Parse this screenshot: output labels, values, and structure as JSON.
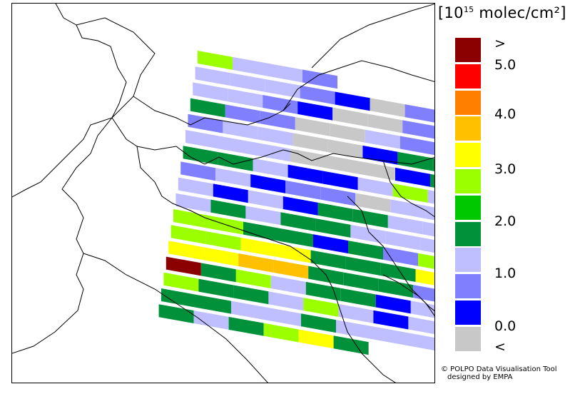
{
  "legend": {
    "title_prefix": "[10",
    "title_exp": "15",
    "title_unit": " molec/cm²]",
    "colors": [
      "#8b0000",
      "#ff0000",
      "#ff7f00",
      "#ffc000",
      "#ffff00",
      "#9cff00",
      "#00c800",
      "#00913a",
      "#bfbfff",
      "#8080ff",
      "#0000ff",
      "#c8c8c8"
    ],
    "tick_labels": [
      ">",
      "5.0",
      "4.0",
      "3.0",
      "2.0",
      "1.0",
      "0.0",
      "<"
    ]
  },
  "credit": {
    "line1": "© POLPO Data Visualisation Tool",
    "line2": "designed by EMPA"
  },
  "map": {
    "pixel_rows": [
      [
        "3",
        "1",
        "1",
        "0"
      ],
      [
        "1",
        "1",
        "1",
        "0",
        "-1",
        "Z",
        "0",
        "-1"
      ],
      [
        "1",
        "1",
        "0",
        "-1",
        "Z",
        "Z",
        "0",
        "-1"
      ],
      [
        "2",
        "0",
        "0",
        "Z",
        "Z",
        "1",
        "0",
        "2"
      ],
      [
        "0",
        "1",
        "1",
        "Z",
        "Z",
        "-1",
        "2",
        "2"
      ],
      [
        "1",
        "1",
        "1",
        "Z",
        "Z",
        "Z",
        "-1",
        "2"
      ],
      [
        "2",
        "2",
        "1",
        "-1",
        "-1",
        "1",
        "3",
        "1"
      ],
      [
        "0",
        "1",
        "-1",
        "0",
        "0",
        "Z",
        "1",
        "1"
      ],
      [
        "1",
        "-1",
        "1",
        "-1",
        "2",
        "2",
        "1",
        "1"
      ],
      [
        "1",
        "2",
        "1",
        "2",
        "2",
        "1",
        "1",
        "1"
      ],
      [
        "3",
        "3",
        "2",
        "2",
        "-1",
        "2",
        "0",
        "3"
      ],
      [
        "3",
        "3",
        "4",
        "4",
        "2",
        "2",
        "2",
        "4"
      ],
      [
        "4",
        "4",
        "3.5",
        "3.5",
        "2",
        "2",
        "2",
        "0"
      ],
      [
        ">",
        "2",
        "3",
        "1",
        "2",
        "2",
        "-1",
        "1"
      ],
      [
        "3",
        "2",
        "2",
        "1",
        "3",
        "1",
        "-1",
        "1"
      ],
      [
        "2",
        "2",
        "1",
        "1",
        "2",
        "1",
        "1",
        "1"
      ],
      [
        "2",
        "1",
        "2",
        "3",
        "4",
        "2"
      ]
    ]
  }
}
